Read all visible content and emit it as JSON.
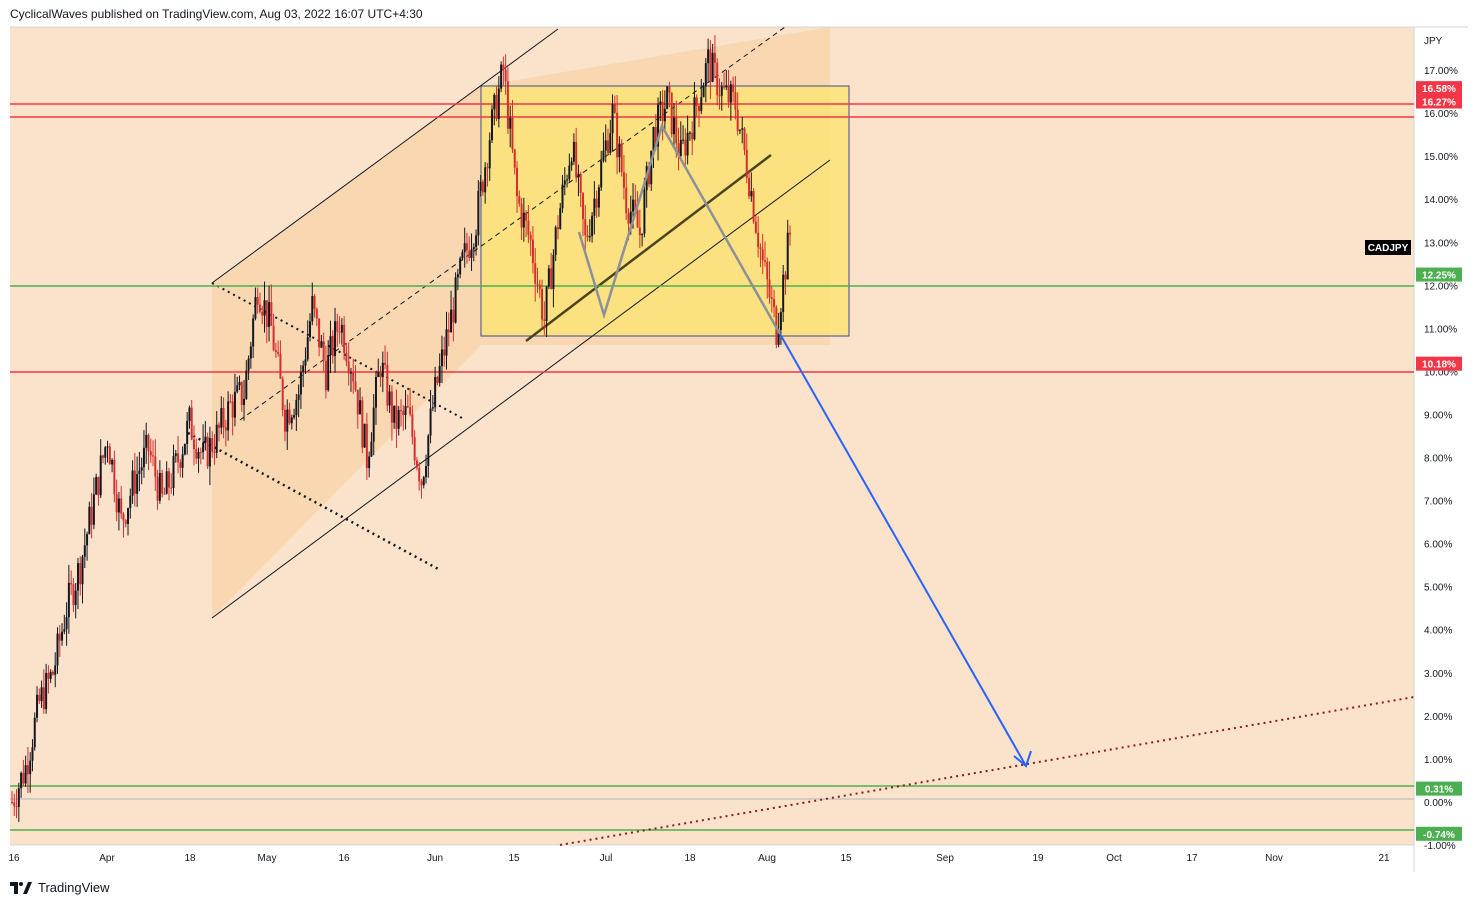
{
  "header": {
    "text": "CyclicalWaves published on TradingView.com, Aug 03, 2022 16:07 UTC+4:30"
  },
  "footer": {
    "brand": "TradingView"
  },
  "colors": {
    "chart_bg": "#fbe3cb",
    "channel_fill": "#f8d3aa",
    "box_fill": "#fde37c",
    "red_line": "#f23645",
    "green_line": "#4caf50",
    "blue_arrow": "#2962ff",
    "candle_up": "#131722",
    "candle_down": "#d32f2f"
  },
  "chart_data": {
    "type": "candlestick",
    "symbol": "CADJPY",
    "ylabel": "JPY",
    "ylim": [
      -1.0,
      18.0
    ],
    "y_ticks": [
      -1,
      0,
      1,
      2,
      3,
      4,
      5,
      6,
      7,
      8,
      9,
      10,
      11,
      12,
      13,
      14,
      15,
      16,
      17
    ],
    "y_tick_labels": [
      "-1.00%",
      "0.00%",
      "1.00%",
      "2.00%",
      "3.00%",
      "4.00%",
      "5.00%",
      "6.00%",
      "7.00%",
      "8.00%",
      "9.00%",
      "10.00%",
      "11.00%",
      "12.00%",
      "13.00%",
      "14.00%",
      "15.00%",
      "16.00%",
      "17.00%"
    ],
    "x_tick_labels": [
      "16",
      "Apr",
      "18",
      "May",
      "16",
      "Jun",
      "15",
      "Jul",
      "18",
      "Aug",
      "15",
      "Sep",
      "19",
      "Oct",
      "17",
      "Nov",
      "21"
    ],
    "horizontal_levels": [
      {
        "label": "16.58%",
        "value": 16.58,
        "color": "red"
      },
      {
        "label": "16.27%",
        "value": 16.27,
        "color": "red"
      },
      {
        "label": "12.25%",
        "value": 12.25,
        "color": "green"
      },
      {
        "label": "10.18%",
        "value": 10.18,
        "color": "red"
      },
      {
        "label": "0.31%",
        "value": 0.31,
        "color": "green"
      },
      {
        "label": "-0.74%",
        "value": -0.74,
        "color": "green"
      }
    ],
    "price_series": [
      0.0,
      0.8,
      2.3,
      3.0,
      4.5,
      5.5,
      7.0,
      8.5,
      6.5,
      7.5,
      8.2,
      7.0,
      7.8,
      8.8,
      8.0,
      8.5,
      9.2,
      9.5,
      12.0,
      11.0,
      9.0,
      9.5,
      11.5,
      10.0,
      11.2,
      10.0,
      8.0,
      10.2,
      8.8,
      9.0,
      7.5,
      9.5,
      11.0,
      12.5,
      13.5,
      15.5,
      17.0,
      14.0,
      13.0,
      11.2,
      13.5,
      15.3,
      13.0,
      14.5,
      16.0,
      14.0,
      13.2,
      15.5,
      16.3,
      15.0,
      16.0,
      17.2,
      16.5,
      16.2,
      14.5,
      12.5,
      11.0,
      13.2
    ],
    "price_label": "CADJPY"
  }
}
